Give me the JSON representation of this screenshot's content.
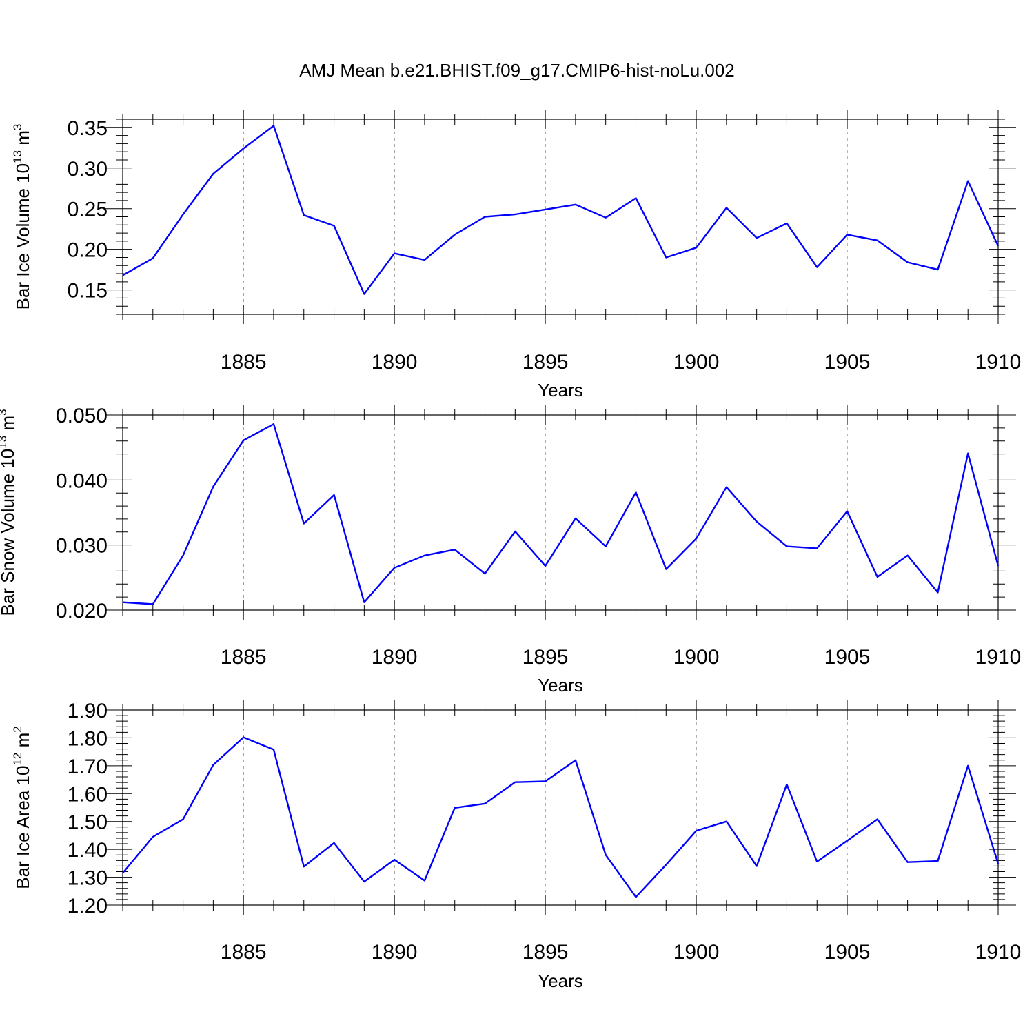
{
  "title": "AMJ Mean b.e21.BHIST.f09_g17.CMIP6-hist-noLu.002",
  "colors": {
    "line": "#0000ff",
    "axes": "#000000",
    "grid": "#777777"
  },
  "chart_data": [
    {
      "type": "line",
      "xlabel": "Years",
      "ylabel": {
        "text": "Bar Ice Volume 10",
        "exponent": "13",
        "unit": " m",
        "unit_exponent": "3"
      },
      "xlim": [
        1881,
        1910
      ],
      "ylim": [
        0.12,
        0.36
      ],
      "xticks": [
        "1885",
        "1890",
        "1895",
        "1900",
        "1905",
        "1910"
      ],
      "yticks": [
        "0.15",
        "0.20",
        "0.25",
        "0.30",
        "0.35"
      ],
      "grid": "vertical dashed at major x ticks",
      "x": [
        1881,
        1882,
        1883,
        1884,
        1885,
        1886,
        1887,
        1888,
        1889,
        1890,
        1891,
        1892,
        1893,
        1894,
        1895,
        1896,
        1897,
        1898,
        1899,
        1900,
        1901,
        1902,
        1903,
        1904,
        1905,
        1906,
        1907,
        1908,
        1909,
        1910
      ],
      "series": [
        {
          "values": [
            0.168,
            0.189,
            0.243,
            0.293,
            0.324,
            0.352,
            0.242,
            0.229,
            0.145,
            0.195,
            0.187,
            0.218,
            0.24,
            0.243,
            0.249,
            0.255,
            0.239,
            0.263,
            0.19,
            0.202,
            0.251,
            0.214,
            0.232,
            0.178,
            0.218,
            0.211,
            0.184,
            0.175,
            0.284,
            0.204
          ]
        }
      ]
    },
    {
      "type": "line",
      "xlabel": "Years",
      "ylabel": {
        "text": "Bar Snow Volume 10",
        "exponent": "13",
        "unit": " m",
        "unit_exponent": "3"
      },
      "xlim": [
        1881,
        1910
      ],
      "ylim": [
        0.02,
        0.05
      ],
      "xticks": [
        "1885",
        "1890",
        "1895",
        "1900",
        "1905",
        "1910"
      ],
      "yticks": [
        "0.020",
        "0.030",
        "0.040",
        "0.050"
      ],
      "grid": "vertical dashed at major x ticks",
      "x": [
        1881,
        1882,
        1883,
        1884,
        1885,
        1886,
        1887,
        1888,
        1889,
        1890,
        1891,
        1892,
        1893,
        1894,
        1895,
        1896,
        1897,
        1898,
        1899,
        1900,
        1901,
        1902,
        1903,
        1904,
        1905,
        1906,
        1907,
        1908,
        1909,
        1910
      ],
      "series": [
        {
          "values": [
            0.0212,
            0.0209,
            0.0284,
            0.039,
            0.0461,
            0.0486,
            0.0333,
            0.0377,
            0.0212,
            0.0265,
            0.0284,
            0.0293,
            0.0256,
            0.0321,
            0.0268,
            0.0341,
            0.0298,
            0.0381,
            0.0263,
            0.031,
            0.0389,
            0.0336,
            0.0298,
            0.0295,
            0.0352,
            0.0251,
            0.0284,
            0.0227,
            0.0441,
            0.0268
          ]
        }
      ]
    },
    {
      "type": "line",
      "xlabel": "Years",
      "ylabel": {
        "text": "Bar Ice Area 10",
        "exponent": "12",
        "unit": " m",
        "unit_exponent": "2"
      },
      "xlim": [
        1881,
        1910
      ],
      "ylim": [
        1.2,
        1.9
      ],
      "xticks": [
        "1885",
        "1890",
        "1895",
        "1900",
        "1905",
        "1910"
      ],
      "yticks": [
        "1.20",
        "1.30",
        "1.40",
        "1.50",
        "1.60",
        "1.70",
        "1.80",
        "1.90"
      ],
      "grid": "vertical dashed at major x ticks",
      "x": [
        1881,
        1882,
        1883,
        1884,
        1885,
        1886,
        1887,
        1888,
        1889,
        1890,
        1891,
        1892,
        1893,
        1894,
        1895,
        1896,
        1897,
        1898,
        1899,
        1900,
        1901,
        1902,
        1903,
        1904,
        1905,
        1906,
        1907,
        1908,
        1909,
        1910
      ],
      "series": [
        {
          "values": [
            1.315,
            1.445,
            1.508,
            1.703,
            1.802,
            1.758,
            1.338,
            1.423,
            1.284,
            1.363,
            1.288,
            1.549,
            1.564,
            1.641,
            1.644,
            1.72,
            1.38,
            1.229,
            1.345,
            1.467,
            1.5,
            1.34,
            1.633,
            1.356,
            1.431,
            1.508,
            1.354,
            1.358,
            1.7,
            1.348
          ]
        }
      ]
    }
  ]
}
